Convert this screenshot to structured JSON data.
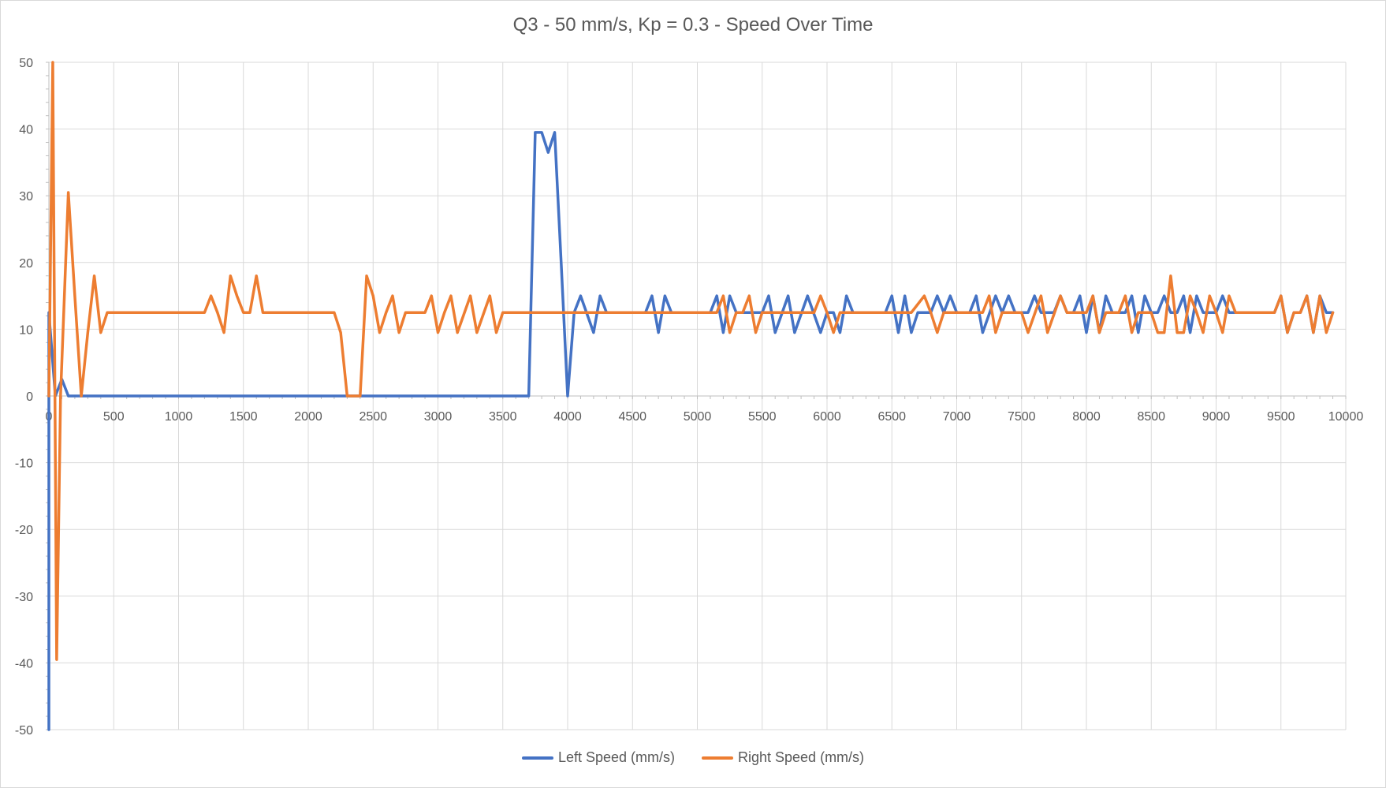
{
  "chart_data": {
    "type": "line",
    "title": "Q3 - 50 mm/s, Kp = 0.3 - Speed Over Time",
    "xlabel": "",
    "ylabel": "",
    "xlim": [
      0,
      10000
    ],
    "ylim": [
      -50,
      50
    ],
    "x_ticks": [
      0,
      500,
      1000,
      1500,
      2000,
      2500,
      3000,
      3500,
      4000,
      4500,
      5000,
      5500,
      6000,
      6500,
      7000,
      7500,
      8000,
      8500,
      9000,
      9500,
      10000
    ],
    "y_ticks": [
      -50,
      -40,
      -30,
      -20,
      -10,
      0,
      10,
      20,
      30,
      40,
      50
    ],
    "grid": true,
    "legend_position": "bottom",
    "series": [
      {
        "name": "Left Speed (mm/s)",
        "color": "#4472c4",
        "points": [
          [
            0,
            -50
          ],
          [
            0,
            12.5
          ],
          [
            50,
            0
          ],
          [
            100,
            2.5
          ],
          [
            150,
            0
          ],
          [
            3700,
            0
          ],
          [
            3750,
            39.5
          ],
          [
            3800,
            39.5
          ],
          [
            3850,
            36.5
          ],
          [
            3900,
            39.5
          ],
          [
            3950,
            20
          ],
          [
            4000,
            0
          ],
          [
            4050,
            12.5
          ],
          [
            4100,
            15
          ],
          [
            4200,
            9.5
          ],
          [
            4250,
            15
          ],
          [
            4300,
            12.5
          ],
          [
            4600,
            12.5
          ],
          [
            4650,
            15
          ],
          [
            4700,
            9.5
          ],
          [
            4750,
            15
          ],
          [
            4800,
            12.5
          ],
          [
            5100,
            12.5
          ],
          [
            5150,
            15
          ],
          [
            5200,
            9.5
          ],
          [
            5250,
            15
          ],
          [
            5300,
            12.5
          ],
          [
            5500,
            12.5
          ],
          [
            5550,
            15
          ],
          [
            5600,
            9.5
          ],
          [
            5700,
            15
          ],
          [
            5750,
            9.5
          ],
          [
            5850,
            15
          ],
          [
            5950,
            9.5
          ],
          [
            6000,
            12.5
          ],
          [
            6050,
            12.5
          ],
          [
            6100,
            9.5
          ],
          [
            6150,
            15
          ],
          [
            6200,
            12.5
          ],
          [
            6450,
            12.5
          ],
          [
            6500,
            15
          ],
          [
            6550,
            9.5
          ],
          [
            6600,
            15
          ],
          [
            6650,
            9.5
          ],
          [
            6700,
            12.5
          ],
          [
            6800,
            12.5
          ],
          [
            6850,
            15
          ],
          [
            6900,
            12.5
          ],
          [
            6950,
            15
          ],
          [
            7000,
            12.5
          ],
          [
            7100,
            12.5
          ],
          [
            7150,
            15
          ],
          [
            7200,
            9.5
          ],
          [
            7300,
            15
          ],
          [
            7350,
            12.5
          ],
          [
            7400,
            15
          ],
          [
            7450,
            12.5
          ],
          [
            7550,
            12.5
          ],
          [
            7600,
            15
          ],
          [
            7650,
            12.5
          ],
          [
            7750,
            12.5
          ],
          [
            7800,
            15
          ],
          [
            7850,
            12.5
          ],
          [
            7900,
            12.5
          ],
          [
            7950,
            15
          ],
          [
            8000,
            9.5
          ],
          [
            8050,
            15
          ],
          [
            8100,
            9.5
          ],
          [
            8150,
            15
          ],
          [
            8200,
            12.5
          ],
          [
            8300,
            12.5
          ],
          [
            8350,
            15
          ],
          [
            8400,
            9.5
          ],
          [
            8450,
            15
          ],
          [
            8500,
            12.5
          ],
          [
            8550,
            12.5
          ],
          [
            8600,
            15
          ],
          [
            8650,
            12.5
          ],
          [
            8700,
            12.5
          ],
          [
            8750,
            15
          ],
          [
            8800,
            9.5
          ],
          [
            8850,
            15
          ],
          [
            8900,
            12.5
          ],
          [
            9000,
            12.5
          ],
          [
            9050,
            15
          ],
          [
            9100,
            12.5
          ],
          [
            9350,
            12.5
          ],
          [
            9450,
            12.5
          ],
          [
            9500,
            15
          ],
          [
            9550,
            9.5
          ],
          [
            9600,
            12.5
          ],
          [
            9650,
            12.5
          ],
          [
            9700,
            15
          ],
          [
            9750,
            9.5
          ],
          [
            9800,
            15
          ],
          [
            9850,
            12.5
          ],
          [
            9900,
            12.5
          ]
        ]
      },
      {
        "name": "Right Speed (mm/s)",
        "color": "#ed7d31",
        "points": [
          [
            0,
            0
          ],
          [
            30,
            50
          ],
          [
            60,
            -39.5
          ],
          [
            90,
            0
          ],
          [
            150,
            30.5
          ],
          [
            200,
            15
          ],
          [
            250,
            0
          ],
          [
            300,
            9.5
          ],
          [
            350,
            18
          ],
          [
            400,
            9.5
          ],
          [
            450,
            12.5
          ],
          [
            1200,
            12.5
          ],
          [
            1250,
            15
          ],
          [
            1300,
            12.5
          ],
          [
            1350,
            9.5
          ],
          [
            1400,
            18
          ],
          [
            1450,
            15
          ],
          [
            1500,
            12.5
          ],
          [
            1550,
            12.5
          ],
          [
            1600,
            18
          ],
          [
            1650,
            12.5
          ],
          [
            2200,
            12.5
          ],
          [
            2250,
            9.5
          ],
          [
            2300,
            0
          ],
          [
            2400,
            0
          ],
          [
            2450,
            18
          ],
          [
            2500,
            15
          ],
          [
            2550,
            9.5
          ],
          [
            2600,
            12.5
          ],
          [
            2650,
            15
          ],
          [
            2700,
            9.5
          ],
          [
            2750,
            12.5
          ],
          [
            2900,
            12.5
          ],
          [
            2950,
            15
          ],
          [
            3000,
            9.5
          ],
          [
            3050,
            12.5
          ],
          [
            3100,
            15
          ],
          [
            3150,
            9.5
          ],
          [
            3250,
            15
          ],
          [
            3300,
            9.5
          ],
          [
            3400,
            15
          ],
          [
            3450,
            9.5
          ],
          [
            3500,
            12.5
          ],
          [
            5100,
            12.5
          ],
          [
            5150,
            12.5
          ],
          [
            5200,
            15
          ],
          [
            5250,
            9.5
          ],
          [
            5300,
            12.5
          ],
          [
            5350,
            12.5
          ],
          [
            5400,
            15
          ],
          [
            5450,
            9.5
          ],
          [
            5500,
            12.5
          ],
          [
            5900,
            12.5
          ],
          [
            5950,
            15
          ],
          [
            6000,
            12.5
          ],
          [
            6050,
            9.5
          ],
          [
            6100,
            12.5
          ],
          [
            6650,
            12.5
          ],
          [
            6750,
            15
          ],
          [
            6800,
            12.5
          ],
          [
            6850,
            9.5
          ],
          [
            6900,
            12.5
          ],
          [
            7200,
            12.5
          ],
          [
            7250,
            15
          ],
          [
            7300,
            9.5
          ],
          [
            7350,
            12.5
          ],
          [
            7500,
            12.5
          ],
          [
            7550,
            9.5
          ],
          [
            7650,
            15
          ],
          [
            7700,
            9.5
          ],
          [
            7800,
            15
          ],
          [
            7850,
            12.5
          ],
          [
            8000,
            12.5
          ],
          [
            8050,
            15
          ],
          [
            8100,
            9.5
          ],
          [
            8150,
            12.5
          ],
          [
            8250,
            12.5
          ],
          [
            8300,
            15
          ],
          [
            8350,
            9.5
          ],
          [
            8400,
            12.5
          ],
          [
            8500,
            12.5
          ],
          [
            8550,
            9.5
          ],
          [
            8600,
            9.5
          ],
          [
            8650,
            18
          ],
          [
            8700,
            9.5
          ],
          [
            8750,
            9.5
          ],
          [
            8800,
            15
          ],
          [
            8850,
            12.5
          ],
          [
            8900,
            9.5
          ],
          [
            8950,
            15
          ],
          [
            9000,
            12.5
          ],
          [
            9050,
            9.5
          ],
          [
            9100,
            15
          ],
          [
            9150,
            12.5
          ],
          [
            9450,
            12.5
          ],
          [
            9500,
            15
          ],
          [
            9550,
            9.5
          ],
          [
            9600,
            12.5
          ],
          [
            9650,
            12.5
          ],
          [
            9700,
            15
          ],
          [
            9750,
            9.5
          ],
          [
            9800,
            15
          ],
          [
            9850,
            9.5
          ],
          [
            9900,
            12.5
          ]
        ]
      }
    ]
  }
}
